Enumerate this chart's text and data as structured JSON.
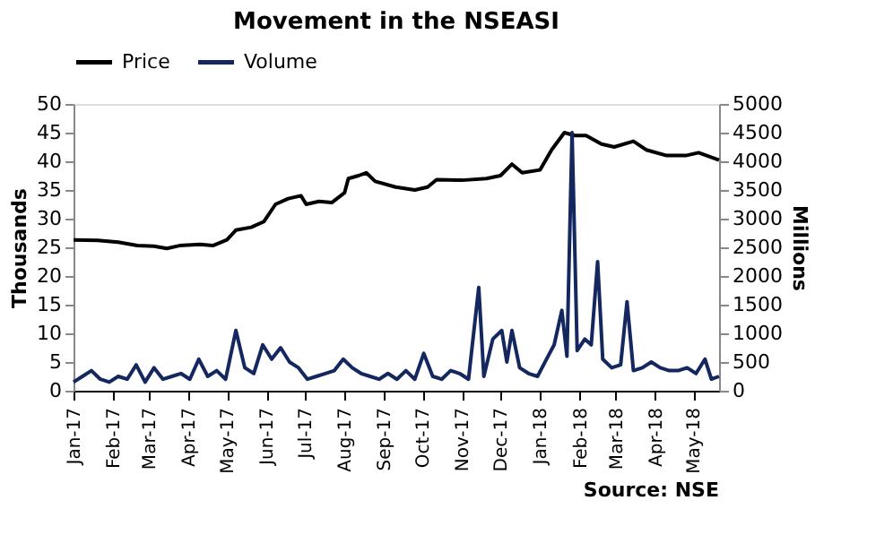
{
  "chart_data": {
    "type": "line",
    "title": "Movement in the NSEASI",
    "ylabel": "Thousands",
    "y2label": "Millions",
    "legend": "top",
    "grid": false,
    "xlim": [
      "2017-01-01",
      "2018-05-21"
    ],
    "xticks": [
      {
        "value": "2017-01-01",
        "label": "Jan-17"
      },
      {
        "value": "2017-02-01",
        "label": "Feb-17"
      },
      {
        "value": "2017-03-01",
        "label": "Mar-17"
      },
      {
        "value": "2017-04-01",
        "label": "Apr-17"
      },
      {
        "value": "2017-05-01",
        "label": "May-17"
      },
      {
        "value": "2017-06-01",
        "label": "Jun-17"
      },
      {
        "value": "2017-07-01",
        "label": "Jul-17"
      },
      {
        "value": "2017-08-01",
        "label": "Aug-17"
      },
      {
        "value": "2017-09-01",
        "label": "Sep-17"
      },
      {
        "value": "2017-10-01",
        "label": "Oct-17"
      },
      {
        "value": "2017-11-01",
        "label": "Nov-17"
      },
      {
        "value": "2017-12-01",
        "label": "Dec-17"
      },
      {
        "value": "2018-01-01",
        "label": "Jan-18"
      },
      {
        "value": "2018-02-01",
        "label": "Feb-18"
      },
      {
        "value": "2018-03-01",
        "label": "Mar-18"
      },
      {
        "value": "2018-04-01",
        "label": "Apr-18"
      },
      {
        "value": "2018-05-01",
        "label": "May-18"
      }
    ],
    "ylim": [
      0,
      50
    ],
    "yticks": [
      0,
      5,
      10,
      15,
      20,
      25,
      30,
      35,
      40,
      45,
      50
    ],
    "y2lim": [
      0,
      5000
    ],
    "y2ticks": [
      0,
      500,
      1000,
      1500,
      2000,
      2500,
      3000,
      3500,
      4000,
      4500,
      5000
    ],
    "annotations": [
      "Source: NSE"
    ],
    "series": [
      {
        "name": "Price",
        "color": "#000000",
        "x": [
          "2017-01-01",
          "2017-01-20",
          "2017-02-05",
          "2017-02-20",
          "2017-03-05",
          "2017-03-15",
          "2017-03-25",
          "2017-04-10",
          "2017-04-20",
          "2017-05-01",
          "2017-05-08",
          "2017-05-20",
          "2017-05-30",
          "2017-06-08",
          "2017-06-18",
          "2017-06-28",
          "2017-07-02",
          "2017-07-12",
          "2017-07-22",
          "2017-08-01",
          "2017-08-04",
          "2017-08-12",
          "2017-08-18",
          "2017-08-25",
          "2017-09-10",
          "2017-09-25",
          "2017-10-05",
          "2017-10-12",
          "2017-11-01",
          "2017-11-20",
          "2017-12-01",
          "2017-12-10",
          "2017-12-18",
          "2018-01-01",
          "2018-01-10",
          "2018-01-20",
          "2018-01-28",
          "2018-02-06",
          "2018-02-18",
          "2018-02-28",
          "2018-03-15",
          "2018-03-25",
          "2018-04-10",
          "2018-04-25",
          "2018-05-05",
          "2018-05-21"
        ],
        "values": [
          26.3,
          26.2,
          25.9,
          25.3,
          25.2,
          24.8,
          25.3,
          25.5,
          25.3,
          26.3,
          28,
          28.5,
          29.5,
          32.5,
          33.5,
          34,
          32.5,
          33,
          32.8,
          34.5,
          37,
          37.5,
          38,
          36.5,
          35.5,
          35,
          35.5,
          36.8,
          36.7,
          37,
          37.5,
          39.5,
          38,
          38.5,
          42,
          45,
          44.5,
          44.5,
          43,
          42.5,
          43.5,
          42,
          41,
          41,
          41.5,
          40.2
        ]
      },
      {
        "name": "Volume",
        "color": "#14275e",
        "axis": "y2",
        "x": [
          "2017-01-01",
          "2017-01-08",
          "2017-01-15",
          "2017-01-22",
          "2017-01-29",
          "2017-02-05",
          "2017-02-12",
          "2017-02-19",
          "2017-02-26",
          "2017-03-05",
          "2017-03-12",
          "2017-03-19",
          "2017-03-26",
          "2017-04-02",
          "2017-04-09",
          "2017-04-16",
          "2017-04-23",
          "2017-04-30",
          "2017-05-08",
          "2017-05-15",
          "2017-05-22",
          "2017-05-29",
          "2017-06-05",
          "2017-06-12",
          "2017-06-19",
          "2017-06-26",
          "2017-07-03",
          "2017-07-10",
          "2017-07-17",
          "2017-07-24",
          "2017-07-31",
          "2017-08-07",
          "2017-08-14",
          "2017-08-21",
          "2017-08-28",
          "2017-09-04",
          "2017-09-11",
          "2017-09-18",
          "2017-09-25",
          "2017-10-02",
          "2017-10-09",
          "2017-10-16",
          "2017-10-23",
          "2017-10-30",
          "2017-11-06",
          "2017-11-14",
          "2017-11-18",
          "2017-11-25",
          "2017-12-02",
          "2017-12-06",
          "2017-12-10",
          "2017-12-16",
          "2017-12-23",
          "2017-12-30",
          "2018-01-06",
          "2018-01-12",
          "2018-01-18",
          "2018-01-22",
          "2018-01-26",
          "2018-01-30",
          "2018-02-05",
          "2018-02-10",
          "2018-02-15",
          "2018-02-19",
          "2018-02-26",
          "2018-03-05",
          "2018-03-10",
          "2018-03-15",
          "2018-03-22",
          "2018-03-29",
          "2018-04-05",
          "2018-04-12",
          "2018-04-19",
          "2018-04-26",
          "2018-05-03",
          "2018-05-10",
          "2018-05-15",
          "2018-05-21"
        ],
        "values": [
          150,
          250,
          350,
          200,
          150,
          250,
          200,
          450,
          150,
          400,
          200,
          250,
          300,
          200,
          550,
          250,
          350,
          200,
          1050,
          400,
          300,
          800,
          550,
          750,
          500,
          400,
          200,
          250,
          300,
          350,
          550,
          400,
          300,
          250,
          200,
          300,
          200,
          350,
          200,
          650,
          250,
          200,
          350,
          300,
          200,
          1800,
          250,
          900,
          1050,
          500,
          1050,
          400,
          300,
          250,
          550,
          800,
          1400,
          600,
          4500,
          700,
          900,
          800,
          2250,
          550,
          400,
          450,
          1550,
          350,
          400,
          500,
          400,
          350,
          350,
          400,
          300,
          550,
          200,
          250
        ]
      }
    ]
  }
}
